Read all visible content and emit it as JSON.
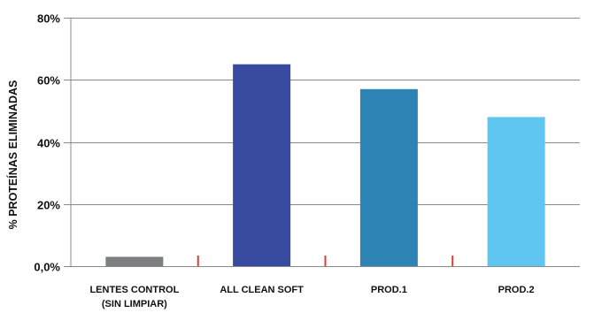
{
  "chart_data": {
    "type": "bar",
    "title": "",
    "xlabel": "",
    "ylabel": "% PROTEÍNAS ELIMINADAS",
    "ylim": [
      0,
      80
    ],
    "yticks": [
      {
        "value": 0,
        "label": "0,0%"
      },
      {
        "value": 20,
        "label": "20%"
      },
      {
        "value": 40,
        "label": "40%"
      },
      {
        "value": 60,
        "label": "60%"
      },
      {
        "value": 80,
        "label": "80%"
      }
    ],
    "grid": true,
    "categories": [
      {
        "lines": [
          "LENTES CONTROL",
          "(SIN LIMPIAR)"
        ]
      },
      {
        "lines": [
          "ALL CLEAN SOFT"
        ]
      },
      {
        "lines": [
          "PROD.1"
        ]
      },
      {
        "lines": [
          "PROD.2"
        ]
      }
    ],
    "values": [
      3,
      65,
      57,
      48
    ],
    "colors": [
      "#7d7e82",
      "#374a9f",
      "#2e83b5",
      "#5ec6f0"
    ],
    "marker_color": "#e23b2f"
  }
}
